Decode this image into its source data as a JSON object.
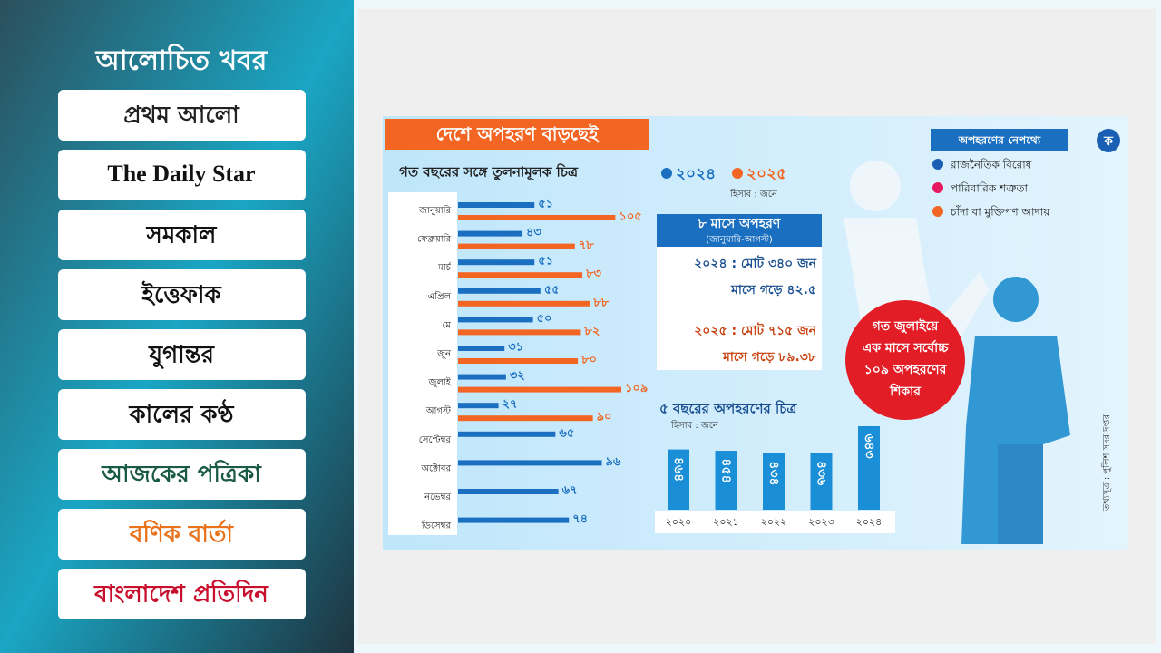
{
  "sidebar": {
    "title": "আলোচিত খবর",
    "logos": [
      "প্রথম আলো",
      "The Daily Star",
      "সমকাল",
      "ইত্তেফাক",
      "যুগান্তর",
      "কালের কণ্ঠ",
      "আজকের পত্রিকা",
      "বণিক বার্তা",
      "বাংলাদেশ প্রতিদিন"
    ]
  },
  "chart_data": [
    {
      "type": "hbar",
      "title": "দেশে অপহরণ বাড়ছেই",
      "subtitle": "গত বছরের সঙ্গে তুলনামূলক চিত্র",
      "unit_note": "হিসাব : জনে",
      "categories": [
        "জানুয়ারি",
        "ফেব্রুয়ারি",
        "মার্চ",
        "এপ্রিল",
        "মে",
        "জুন",
        "জুলাই",
        "আগস্ট",
        "সেপ্টেম্বর",
        "অক্টোবর",
        "নভেম্বর",
        "ডিসেম্বর"
      ],
      "series": [
        {
          "name": "২০২৪",
          "color": "#1a6fc0",
          "values": [
            51,
            43,
            51,
            55,
            50,
            31,
            32,
            27,
            65,
            96,
            67,
            74
          ],
          "value_labels": [
            "৫১",
            "৪৩",
            "৫১",
            "৫৫",
            "৫০",
            "৩১",
            "৩২",
            "২৭",
            "৬৫",
            "৯৬",
            "৬৭",
            "৭৪"
          ]
        },
        {
          "name": "২০২৫",
          "color": "#f26522",
          "values": [
            105,
            78,
            83,
            88,
            82,
            80,
            109,
            90,
            null,
            null,
            null,
            null
          ],
          "value_labels": [
            "১০৫",
            "৭৮",
            "৮৩",
            "৮৮",
            "৮২",
            "৮০",
            "১০৯",
            "৯০",
            null,
            null,
            null,
            null
          ]
        }
      ]
    },
    {
      "type": "vbar",
      "title": "৫ বছরের অপহরণের চিত্র",
      "unit_note": "হিসাব : জনে",
      "categories": [
        "২০২০",
        "২০২১",
        "২০২২",
        "২০২৩",
        "২০২৪"
      ],
      "values": [
        464,
        454,
        434,
        436,
        643
      ],
      "value_labels": [
        "৪৬৪",
        "৪৫৪",
        "৪৩৪",
        "৪৩৬",
        "৬৪৩"
      ],
      "color": "#1a8fd8"
    }
  ],
  "summary": {
    "title": "৮ মাসে অপহরণ",
    "subtitle": "(জানুয়ারি-আগস্ট)",
    "lines": [
      "২০২৪ : মোট ৩৪০ জন",
      "মাসে গড়ে ৪২.৫",
      "২০২৫ : মোট ৭১৫ জন",
      "মাসে গড়ে ৮৯.৩৮"
    ]
  },
  "callout": [
    "গত জুলাইয়ে",
    "এক মাসে সর্বোচ্চ",
    "১০৯ অপহরণের",
    "শিকার"
  ],
  "causes": {
    "title": "অপহরণের নেপথ্যে",
    "items": [
      {
        "label": "রাজনৈতিক বিরোধ",
        "color": "#1a5fb4"
      },
      {
        "label": "পারিবারিক শত্রুতা",
        "color": "#e6195f"
      },
      {
        "label": "চাঁদা বা মুক্তিপণ আদায়",
        "color": "#f26522"
      }
    ]
  },
  "source": "তথ্যসূত্র : পুলিশ সদর দপ্তর",
  "brand": "ক"
}
